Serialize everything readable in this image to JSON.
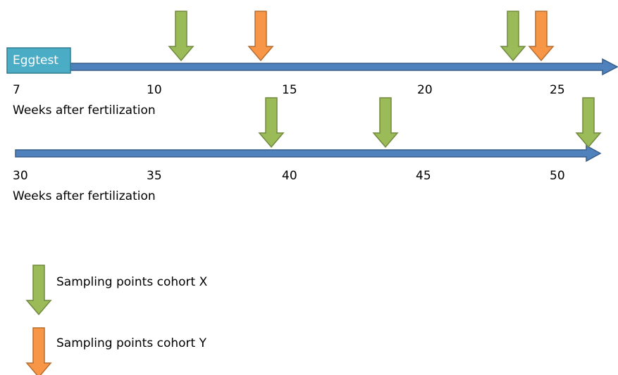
{
  "box_label": "Eggtest",
  "timelines": [
    {
      "ticks": [
        7,
        10,
        15,
        20,
        25
      ],
      "axis_label": "Weeks after fertilization"
    },
    {
      "ticks": [
        30,
        35,
        40,
        45,
        50
      ],
      "axis_label": "Weeks after fertilization"
    }
  ],
  "legend": [
    {
      "label": "Sampling points cohort X"
    },
    {
      "label": "Sampling points cohort Y"
    }
  ]
}
